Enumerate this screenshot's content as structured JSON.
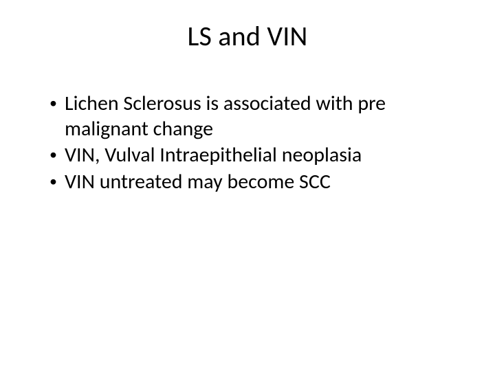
{
  "slide": {
    "title": "LS and VIN",
    "bullets": [
      "Lichen Sclerosus is associated with pre malignant change",
      "VIN, Vulval Intraepithelial neoplasia",
      "VIN untreated may become SCC"
    ],
    "title_fontsize": 40,
    "bullet_fontsize": 30,
    "text_color": "#000000",
    "background_color": "#ffffff",
    "font_family": "Calibri"
  }
}
